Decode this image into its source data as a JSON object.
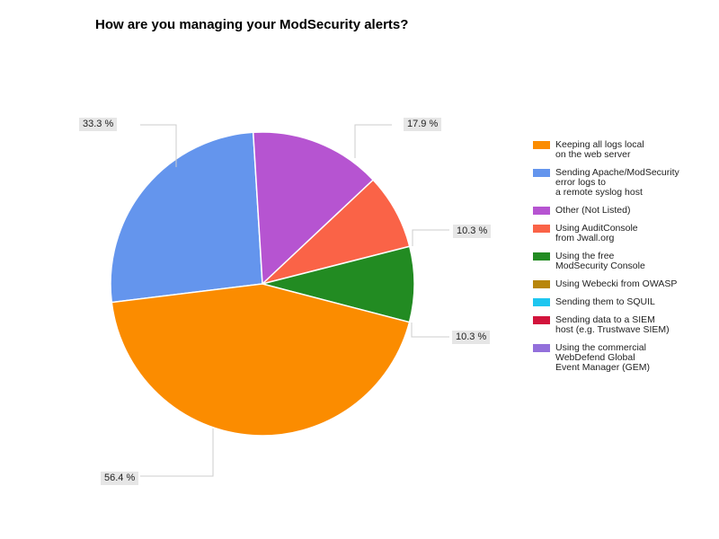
{
  "chart_data": {
    "type": "pie",
    "title": "How are you managing your ModSecurity alerts?",
    "slices": [
      {
        "name": "Keeping all logs local on the web server",
        "lines": [
          "Keeping all logs local",
          "on the web server"
        ],
        "value": 56.4,
        "label": "56.4 %",
        "color": "#fb8c00"
      },
      {
        "name": "Sending Apache/ModSecurity error logs to a remote syslog host",
        "lines": [
          "Sending Apache/ModSecurity",
          "error logs to",
          "a remote syslog host"
        ],
        "value": 33.3,
        "label": "33.3 %",
        "color": "#6495ed"
      },
      {
        "name": "Other (Not Listed)",
        "lines": [
          "Other (Not Listed)"
        ],
        "value": 17.9,
        "label": "17.9 %",
        "color": "#b654d1"
      },
      {
        "name": "Using AuditConsole from Jwall.org",
        "lines": [
          "Using AuditConsole",
          "from Jwall.org"
        ],
        "value": 10.3,
        "label": "10.3 %",
        "color": "#fa6347"
      },
      {
        "name": "Using the free ModSecurity Console",
        "lines": [
          "Using the free",
          "ModSecurity Console"
        ],
        "value": 10.3,
        "label": "10.3 %",
        "color": "#228b22"
      },
      {
        "name": "Using Webecki from OWASP",
        "lines": [
          "Using Webecki from OWASP"
        ],
        "value": 0,
        "label": "",
        "color": "#b8860b"
      },
      {
        "name": "Sending them to SQUIL",
        "lines": [
          "Sending them to SQUIL"
        ],
        "value": 0,
        "label": "",
        "color": "#1ec6f0"
      },
      {
        "name": "Sending data to a SIEM host (e.g. Trustwave SIEM)",
        "lines": [
          "Sending data to a SIEM",
          "host (e.g. Trustwave SIEM)"
        ],
        "value": 0,
        "label": "",
        "color": "#d2143c"
      },
      {
        "name": "Using the commercial WebDefend Global Event Manager (GEM)",
        "lines": [
          "Using the commercial",
          "WebDefend Global",
          "Event Manager (GEM)"
        ],
        "value": 0,
        "label": "",
        "color": "#9370db"
      }
    ],
    "legend_position": "right"
  }
}
